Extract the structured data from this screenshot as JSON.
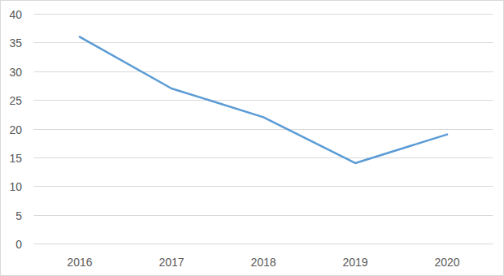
{
  "chart_data": {
    "type": "line",
    "categories": [
      "2016",
      "2017",
      "2018",
      "2019",
      "2020"
    ],
    "values": [
      36,
      27,
      22,
      14,
      19
    ],
    "color": "#5b9bd5",
    "ylim": [
      0,
      40
    ],
    "yticks": [
      0,
      5,
      10,
      15,
      20,
      25,
      30,
      35,
      40
    ],
    "grid": true
  }
}
